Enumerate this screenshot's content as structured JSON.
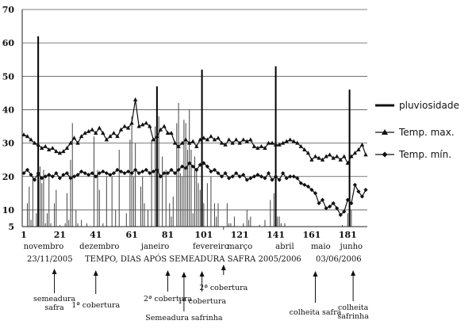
{
  "chart_data": {
    "type": "line",
    "xlabel": "TEMPO, DIAS APÓS SEMEADURA SAFRA 2005/2006",
    "ylim": [
      5,
      70
    ],
    "xlim": [
      1,
      191
    ],
    "y_ticks": [
      "5",
      "10",
      "20",
      "30",
      "40",
      "50",
      "60",
      "70"
    ],
    "x_ticks": [
      1,
      21,
      41,
      61,
      81,
      101,
      121,
      141,
      161,
      181
    ],
    "months": [
      {
        "label": "novembro",
        "x": 12
      },
      {
        "label": "dezembro",
        "x": 43
      },
      {
        "label": "janeiro",
        "x": 74
      },
      {
        "label": "fevereiro",
        "x": 105
      },
      {
        "label": "março",
        "x": 121
      },
      {
        "label": "abril",
        "x": 146
      },
      {
        "label": "maio",
        "x": 166
      },
      {
        "label": "junho",
        "x": 183
      }
    ],
    "start_date": "23/11/2005",
    "end_date": "03/06/2006",
    "grid": "horizontal",
    "legend_position": "right",
    "series": [
      {
        "name": "pluviosidade",
        "style": "bars",
        "points": [
          [
            3,
            12
          ],
          [
            4,
            17
          ],
          [
            5,
            7
          ],
          [
            6,
            20
          ],
          [
            8,
            9
          ],
          [
            9,
            62
          ],
          [
            10,
            23
          ],
          [
            11,
            18
          ],
          [
            12,
            22
          ],
          [
            13,
            6
          ],
          [
            14,
            9
          ],
          [
            15,
            20
          ],
          [
            16,
            6
          ],
          [
            18,
            12
          ],
          [
            19,
            16
          ],
          [
            21,
            5.5
          ],
          [
            24,
            6
          ],
          [
            25,
            15
          ],
          [
            26,
            7
          ],
          [
            27,
            25
          ],
          [
            28,
            36
          ],
          [
            30,
            10
          ],
          [
            31,
            6
          ],
          [
            33,
            7
          ],
          [
            36,
            6
          ],
          [
            40,
            32
          ],
          [
            42,
            22
          ],
          [
            43,
            16
          ],
          [
            45,
            6
          ],
          [
            47,
            20
          ],
          [
            50,
            20
          ],
          [
            52,
            10
          ],
          [
            54,
            28
          ],
          [
            58,
            9
          ],
          [
            60,
            31
          ],
          [
            61,
            38
          ],
          [
            62,
            20
          ],
          [
            63,
            30
          ],
          [
            66,
            17
          ],
          [
            67,
            20
          ],
          [
            68,
            12
          ],
          [
            70,
            10
          ],
          [
            72,
            31
          ],
          [
            74,
            35
          ],
          [
            75,
            47
          ],
          [
            76,
            38
          ],
          [
            78,
            26
          ],
          [
            80,
            22
          ],
          [
            82,
            12
          ],
          [
            83,
            8
          ],
          [
            84,
            14
          ],
          [
            86,
            36
          ],
          [
            87,
            42
          ],
          [
            88,
            21
          ],
          [
            89,
            20
          ],
          [
            90,
            37
          ],
          [
            91,
            36
          ],
          [
            92,
            28
          ],
          [
            93,
            40
          ],
          [
            94,
            28
          ],
          [
            95,
            9
          ],
          [
            96,
            26
          ],
          [
            97,
            22
          ],
          [
            98,
            18
          ],
          [
            99,
            16
          ],
          [
            100,
            52
          ],
          [
            101,
            12
          ],
          [
            103,
            18
          ],
          [
            105,
            20
          ],
          [
            107,
            12
          ],
          [
            108,
            8
          ],
          [
            109,
            12
          ],
          [
            112,
            4
          ],
          [
            114,
            12
          ],
          [
            115,
            6
          ],
          [
            116,
            6
          ],
          [
            118,
            8
          ],
          [
            123,
            6
          ],
          [
            125,
            10
          ],
          [
            126,
            7
          ],
          [
            127,
            8
          ],
          [
            132,
            5.5
          ],
          [
            135,
            7
          ],
          [
            136,
            5
          ],
          [
            138,
            13
          ],
          [
            140,
            15
          ],
          [
            141,
            53
          ],
          [
            142,
            8
          ],
          [
            143,
            8
          ],
          [
            144,
            6
          ],
          [
            146,
            6
          ],
          [
            178,
            5.5
          ],
          [
            181,
            9
          ],
          [
            182,
            46
          ],
          [
            183,
            10
          ]
        ]
      },
      {
        "name": "Temp. max.",
        "style": "line-triangle",
        "points": [
          [
            1,
            32.5
          ],
          [
            3,
            32
          ],
          [
            5,
            31
          ],
          [
            7,
            30
          ],
          [
            9,
            29.5
          ],
          [
            11,
            28.5
          ],
          [
            13,
            29
          ],
          [
            15,
            28
          ],
          [
            17,
            28.5
          ],
          [
            19,
            27.5
          ],
          [
            21,
            27
          ],
          [
            23,
            27.5
          ],
          [
            25,
            28.5
          ],
          [
            27,
            30
          ],
          [
            29,
            31.5
          ],
          [
            31,
            30
          ],
          [
            33,
            32
          ],
          [
            35,
            33
          ],
          [
            37,
            33.5
          ],
          [
            39,
            34
          ],
          [
            41,
            33
          ],
          [
            43,
            34.5
          ],
          [
            45,
            33
          ],
          [
            47,
            31
          ],
          [
            49,
            32
          ],
          [
            51,
            33
          ],
          [
            53,
            32
          ],
          [
            55,
            34
          ],
          [
            57,
            35
          ],
          [
            59,
            34.5
          ],
          [
            61,
            36
          ],
          [
            63,
            43
          ],
          [
            65,
            35
          ],
          [
            67,
            35.5
          ],
          [
            69,
            36
          ],
          [
            71,
            35
          ],
          [
            73,
            31
          ],
          [
            75,
            32
          ],
          [
            77,
            34
          ],
          [
            79,
            35
          ],
          [
            81,
            33
          ],
          [
            83,
            33
          ],
          [
            85,
            30
          ],
          [
            87,
            29
          ],
          [
            89,
            30
          ],
          [
            91,
            31
          ],
          [
            93,
            30
          ],
          [
            95,
            30.5
          ],
          [
            97,
            29
          ],
          [
            99,
            31
          ],
          [
            101,
            31.5
          ],
          [
            103,
            31
          ],
          [
            105,
            32
          ],
          [
            107,
            31
          ],
          [
            109,
            31.5
          ],
          [
            111,
            30
          ],
          [
            113,
            29.5
          ],
          [
            115,
            31
          ],
          [
            117,
            30
          ],
          [
            119,
            31
          ],
          [
            121,
            30
          ],
          [
            123,
            31
          ],
          [
            125,
            30.5
          ],
          [
            127,
            31
          ],
          [
            129,
            29
          ],
          [
            131,
            28.5
          ],
          [
            133,
            29
          ],
          [
            135,
            28.5
          ],
          [
            137,
            30
          ],
          [
            139,
            30
          ],
          [
            141,
            29.5
          ],
          [
            143,
            29.5
          ],
          [
            145,
            30
          ],
          [
            147,
            30.5
          ],
          [
            149,
            31
          ],
          [
            151,
            30.5
          ],
          [
            153,
            30
          ],
          [
            155,
            29
          ],
          [
            157,
            28
          ],
          [
            159,
            27
          ],
          [
            161,
            25
          ],
          [
            163,
            26
          ],
          [
            165,
            25.5
          ],
          [
            167,
            25
          ],
          [
            169,
            26
          ],
          [
            171,
            26.5
          ],
          [
            173,
            25.5
          ],
          [
            175,
            26
          ],
          [
            177,
            25
          ],
          [
            179,
            26
          ],
          [
            181,
            24
          ],
          [
            183,
            26
          ],
          [
            185,
            27
          ],
          [
            187,
            28
          ],
          [
            189,
            29.5
          ],
          [
            191,
            26.5
          ]
        ]
      },
      {
        "name": "Temp. mín.",
        "style": "line-diamond",
        "points": [
          [
            1,
            21
          ],
          [
            3,
            22
          ],
          [
            5,
            20.5
          ],
          [
            7,
            19
          ],
          [
            9,
            21
          ],
          [
            11,
            19.5
          ],
          [
            13,
            20
          ],
          [
            15,
            20.5
          ],
          [
            17,
            20
          ],
          [
            19,
            21
          ],
          [
            21,
            19.5
          ],
          [
            23,
            20.5
          ],
          [
            25,
            21
          ],
          [
            27,
            19.5
          ],
          [
            29,
            20
          ],
          [
            31,
            20.5
          ],
          [
            33,
            21.5
          ],
          [
            35,
            21
          ],
          [
            37,
            20.5
          ],
          [
            39,
            21
          ],
          [
            41,
            20
          ],
          [
            43,
            21
          ],
          [
            45,
            21.5
          ],
          [
            47,
            21
          ],
          [
            49,
            20.5
          ],
          [
            51,
            21
          ],
          [
            53,
            22
          ],
          [
            55,
            21.5
          ],
          [
            57,
            21
          ],
          [
            59,
            21.5
          ],
          [
            61,
            21
          ],
          [
            63,
            22
          ],
          [
            65,
            21
          ],
          [
            67,
            21.5
          ],
          [
            69,
            22
          ],
          [
            71,
            21
          ],
          [
            73,
            21.5
          ],
          [
            75,
            22
          ],
          [
            77,
            20
          ],
          [
            79,
            21
          ],
          [
            81,
            21
          ],
          [
            83,
            22
          ],
          [
            85,
            21
          ],
          [
            87,
            22
          ],
          [
            89,
            23
          ],
          [
            91,
            22.5
          ],
          [
            93,
            24
          ],
          [
            95,
            23
          ],
          [
            97,
            22
          ],
          [
            99,
            23.5
          ],
          [
            101,
            24
          ],
          [
            103,
            23
          ],
          [
            105,
            21.5
          ],
          [
            107,
            22
          ],
          [
            109,
            21
          ],
          [
            111,
            20
          ],
          [
            113,
            21
          ],
          [
            115,
            19.5
          ],
          [
            117,
            20
          ],
          [
            119,
            21
          ],
          [
            121,
            20
          ],
          [
            123,
            20.5
          ],
          [
            125,
            19
          ],
          [
            127,
            19.5
          ],
          [
            129,
            20
          ],
          [
            131,
            20.5
          ],
          [
            133,
            20
          ],
          [
            135,
            19.5
          ],
          [
            137,
            21
          ],
          [
            139,
            19
          ],
          [
            141,
            20
          ],
          [
            143,
            19
          ],
          [
            145,
            21
          ],
          [
            147,
            19.5
          ],
          [
            149,
            20
          ],
          [
            151,
            20
          ],
          [
            153,
            19.5
          ],
          [
            155,
            18
          ],
          [
            157,
            17.5
          ],
          [
            159,
            17
          ],
          [
            161,
            16
          ],
          [
            163,
            15
          ],
          [
            165,
            12
          ],
          [
            167,
            13
          ],
          [
            169,
            10.5
          ],
          [
            171,
            11
          ],
          [
            173,
            12
          ],
          [
            175,
            10.5
          ],
          [
            177,
            8.5
          ],
          [
            179,
            9.5
          ],
          [
            181,
            13
          ],
          [
            183,
            12
          ],
          [
            185,
            17.5
          ],
          [
            187,
            15.5
          ],
          [
            189,
            14
          ],
          [
            191,
            16
          ]
        ]
      }
    ],
    "annotations": [
      {
        "lines": [
          "semeadura",
          "safra"
        ],
        "x": 18
      },
      {
        "lines": [
          "1ª cobertura"
        ],
        "x": 41
      },
      {
        "lines": [
          "2ª cobertura"
        ],
        "x": 81
      },
      {
        "lines": [
          "Semeadura safrinha"
        ],
        "x": 90
      },
      {
        "lines": [
          "1ª cobertura"
        ],
        "x": 100
      },
      {
        "lines": [
          "2ª cobertura"
        ],
        "x": 112
      },
      {
        "lines": [
          "colheita safra"
        ],
        "x": 163
      },
      {
        "lines": [
          "colheita",
          "safrinha"
        ],
        "x": 184
      }
    ]
  }
}
